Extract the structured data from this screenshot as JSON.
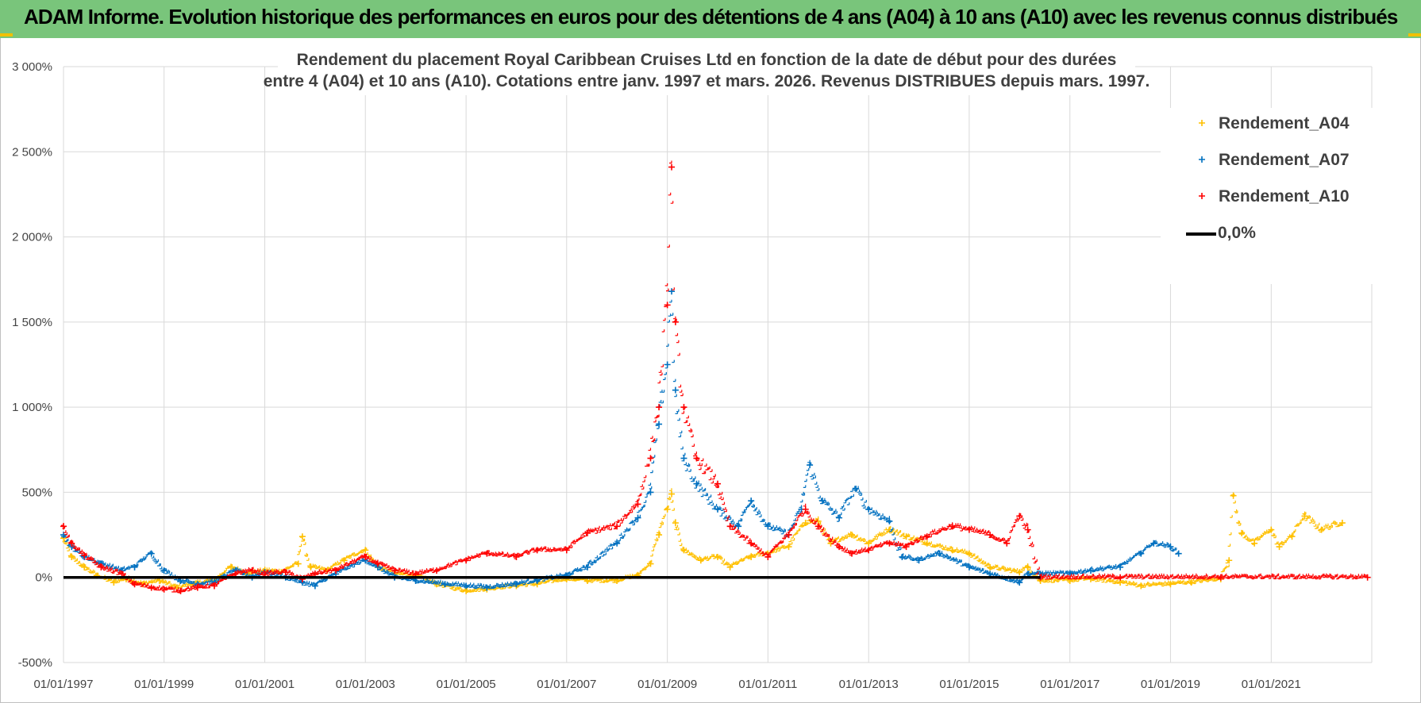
{
  "banner": {
    "title": "ADAM Informe. Evolution historique des performances en euros pour des détentions de 4 ans (A04) à 10 ans (A10) avec les revenus connus distribués"
  },
  "colors": {
    "banner_bg": "#79c57b",
    "A04": "#ffc000",
    "A07": "#0070c0",
    "A10": "#ff0000",
    "zero_line": "#000000",
    "grid": "#d9d9d9"
  },
  "chart_data": {
    "type": "scatter",
    "title_lines": [
      "Rendement du placement Royal Caribbean Cruises Ltd en fonction de la date de début pour des durées",
      "entre 4 (A04) et 10 ans (A10).  Cotations entre janv. 1997 et mars. 2026. Revenus DISTRIBUES depuis mars. 1997."
    ],
    "y_unit": "%",
    "ylim": [
      -500,
      3000
    ],
    "yticks": [
      {
        "value": 3000,
        "label": "3 000%"
      },
      {
        "value": 2500,
        "label": "2 500%"
      },
      {
        "value": 2000,
        "label": "2 000%"
      },
      {
        "value": 1500,
        "label": "1 500%"
      },
      {
        "value": 1000,
        "label": "1 000%"
      },
      {
        "value": 500,
        "label": "500%"
      },
      {
        "value": 0,
        "label": "0%"
      },
      {
        "value": -500,
        "label": "-500%"
      }
    ],
    "xlim": [
      "1997-01-01",
      "2023-01-01"
    ],
    "xticks": [
      {
        "value": "1997-01-01",
        "label": "01/01/1997"
      },
      {
        "value": "1999-01-01",
        "label": "01/01/1999"
      },
      {
        "value": "2001-01-01",
        "label": "01/01/2001"
      },
      {
        "value": "2003-01-01",
        "label": "01/01/2003"
      },
      {
        "value": "2005-01-01",
        "label": "01/01/2005"
      },
      {
        "value": "2007-01-01",
        "label": "01/01/2007"
      },
      {
        "value": "2009-01-01",
        "label": "01/01/2009"
      },
      {
        "value": "2011-01-01",
        "label": "01/01/2011"
      },
      {
        "value": "2013-01-01",
        "label": "01/01/2013"
      },
      {
        "value": "2015-01-01",
        "label": "01/01/2015"
      },
      {
        "value": "2017-01-01",
        "label": "01/01/2017"
      },
      {
        "value": "2019-01-01",
        "label": "01/01/2019"
      },
      {
        "value": "2021-01-01",
        "label": "01/01/2021"
      }
    ],
    "grid": "vertical and horizontal",
    "legend_position": "top-right",
    "series": [
      {
        "name": "Rendement_A04",
        "marker": "plus",
        "color": "#ffc000",
        "points": [
          [
            "1997-01-01",
            230
          ],
          [
            "1997-03-01",
            120
          ],
          [
            "1997-06-01",
            60
          ],
          [
            "1997-09-01",
            10
          ],
          [
            "1998-01-01",
            -30
          ],
          [
            "1998-04-01",
            -10
          ],
          [
            "1998-08-01",
            -40
          ],
          [
            "1998-12-01",
            -20
          ],
          [
            "1999-04-01",
            -60
          ],
          [
            "1999-08-01",
            -40
          ],
          [
            "2000-01-01",
            -20
          ],
          [
            "2000-05-01",
            60
          ],
          [
            "2000-09-01",
            20
          ],
          [
            "2001-01-01",
            40
          ],
          [
            "2001-05-01",
            30
          ],
          [
            "2001-09-01",
            80
          ],
          [
            "2001-10-01",
            240
          ],
          [
            "2001-12-01",
            60
          ],
          [
            "2002-04-01",
            40
          ],
          [
            "2002-08-01",
            100
          ],
          [
            "2003-01-01",
            160
          ],
          [
            "2003-04-01",
            60
          ],
          [
            "2003-08-01",
            20
          ],
          [
            "2004-01-01",
            10
          ],
          [
            "2004-06-01",
            -40
          ],
          [
            "2005-01-01",
            -80
          ],
          [
            "2005-06-01",
            -70
          ],
          [
            "2006-01-01",
            -50
          ],
          [
            "2006-06-01",
            -40
          ],
          [
            "2007-01-01",
            -10
          ],
          [
            "2007-06-01",
            -20
          ],
          [
            "2008-01-01",
            -20
          ],
          [
            "2008-06-01",
            10
          ],
          [
            "2008-09-01",
            80
          ],
          [
            "2008-11-01",
            250
          ],
          [
            "2009-01-01",
            400
          ],
          [
            "2009-02-01",
            490
          ],
          [
            "2009-03-01",
            320
          ],
          [
            "2009-05-01",
            160
          ],
          [
            "2009-09-01",
            100
          ],
          [
            "2010-01-01",
            120
          ],
          [
            "2010-04-01",
            60
          ],
          [
            "2010-09-01",
            120
          ],
          [
            "2011-01-01",
            140
          ],
          [
            "2011-06-01",
            180
          ],
          [
            "2011-10-01",
            320
          ],
          [
            "2012-01-01",
            330
          ],
          [
            "2012-04-01",
            200
          ],
          [
            "2012-09-01",
            250
          ],
          [
            "2013-01-01",
            200
          ],
          [
            "2013-06-01",
            280
          ],
          [
            "2013-10-01",
            240
          ],
          [
            "2014-03-01",
            200
          ],
          [
            "2014-09-01",
            160
          ],
          [
            "2015-01-01",
            140
          ],
          [
            "2015-06-01",
            60
          ],
          [
            "2016-01-01",
            30
          ],
          [
            "2016-03-01",
            60
          ],
          [
            "2016-06-01",
            -20
          ],
          [
            "2017-01-01",
            -20
          ],
          [
            "2017-06-01",
            -10
          ],
          [
            "2018-01-01",
            -30
          ],
          [
            "2018-06-01",
            -50
          ],
          [
            "2019-01-01",
            -40
          ],
          [
            "2019-06-01",
            -30
          ],
          [
            "2020-01-01",
            -10
          ],
          [
            "2020-03-01",
            100
          ],
          [
            "2020-04-01",
            480
          ],
          [
            "2020-06-01",
            260
          ],
          [
            "2020-09-01",
            200
          ],
          [
            "2021-01-01",
            280
          ],
          [
            "2021-03-01",
            180
          ],
          [
            "2021-06-01",
            240
          ],
          [
            "2021-09-01",
            360
          ],
          [
            "2022-01-01",
            280
          ],
          [
            "2022-06-01",
            320
          ]
        ]
      },
      {
        "name": "Rendement_A07",
        "marker": "plus",
        "color": "#0070c0",
        "points": [
          [
            "1997-01-01",
            250
          ],
          [
            "1997-03-01",
            180
          ],
          [
            "1997-06-01",
            120
          ],
          [
            "1997-10-01",
            80
          ],
          [
            "1998-03-01",
            40
          ],
          [
            "1998-06-01",
            60
          ],
          [
            "1998-10-01",
            140
          ],
          [
            "1999-01-01",
            40
          ],
          [
            "1999-05-01",
            -20
          ],
          [
            "1999-09-01",
            -40
          ],
          [
            "2000-01-01",
            -30
          ],
          [
            "2000-06-01",
            40
          ],
          [
            "2000-10-01",
            0
          ],
          [
            "2001-01-01",
            30
          ],
          [
            "2001-06-01",
            0
          ],
          [
            "2001-10-01",
            -30
          ],
          [
            "2002-01-01",
            -50
          ],
          [
            "2002-06-01",
            20
          ],
          [
            "2003-01-01",
            100
          ],
          [
            "2003-04-01",
            60
          ],
          [
            "2003-08-01",
            0
          ],
          [
            "2004-01-01",
            -20
          ],
          [
            "2004-08-01",
            -40
          ],
          [
            "2005-01-01",
            -50
          ],
          [
            "2005-06-01",
            -60
          ],
          [
            "2006-01-01",
            -40
          ],
          [
            "2006-06-01",
            -20
          ],
          [
            "2007-01-01",
            10
          ],
          [
            "2007-06-01",
            60
          ],
          [
            "2008-01-01",
            200
          ],
          [
            "2008-06-01",
            350
          ],
          [
            "2008-09-01",
            500
          ],
          [
            "2008-11-01",
            900
          ],
          [
            "2009-01-01",
            1250
          ],
          [
            "2009-02-01",
            1680
          ],
          [
            "2009-03-01",
            1100
          ],
          [
            "2009-05-01",
            700
          ],
          [
            "2009-08-01",
            550
          ],
          [
            "2010-01-01",
            400
          ],
          [
            "2010-06-01",
            300
          ],
          [
            "2010-09-01",
            450
          ],
          [
            "2011-01-01",
            300
          ],
          [
            "2011-06-01",
            250
          ],
          [
            "2011-09-01",
            400
          ],
          [
            "2011-11-01",
            660
          ],
          [
            "2012-02-01",
            450
          ],
          [
            "2012-06-01",
            350
          ],
          [
            "2012-10-01",
            520
          ],
          [
            "2013-01-01",
            400
          ],
          [
            "2013-06-01",
            330
          ],
          [
            "2013-09-01",
            120
          ],
          [
            "2014-01-01",
            100
          ],
          [
            "2014-06-01",
            140
          ],
          [
            "2015-01-01",
            60
          ],
          [
            "2015-06-01",
            20
          ],
          [
            "2016-01-01",
            -30
          ],
          [
            "2016-03-01",
            20
          ],
          [
            "2016-06-01",
            20
          ],
          [
            "2017-01-01",
            20
          ],
          [
            "2017-06-01",
            40
          ],
          [
            "2018-01-01",
            60
          ],
          [
            "2018-06-01",
            140
          ],
          [
            "2018-09-01",
            200
          ],
          [
            "2019-01-01",
            180
          ],
          [
            "2019-03-01",
            140
          ]
        ]
      },
      {
        "name": "Rendement_A10",
        "marker": "plus",
        "color": "#ff0000",
        "points": [
          [
            "1997-01-01",
            300
          ],
          [
            "1997-03-01",
            200
          ],
          [
            "1997-06-01",
            130
          ],
          [
            "1997-10-01",
            60
          ],
          [
            "1998-03-01",
            20
          ],
          [
            "1998-06-01",
            -40
          ],
          [
            "1998-10-01",
            -60
          ],
          [
            "1999-01-01",
            -70
          ],
          [
            "1999-05-01",
            -80
          ],
          [
            "1999-09-01",
            -60
          ],
          [
            "2000-01-01",
            -50
          ],
          [
            "2000-06-01",
            20
          ],
          [
            "2000-10-01",
            40
          ],
          [
            "2001-01-01",
            20
          ],
          [
            "2001-06-01",
            30
          ],
          [
            "2001-10-01",
            -10
          ],
          [
            "2002-01-01",
            20
          ],
          [
            "2002-06-01",
            40
          ],
          [
            "2003-01-01",
            120
          ],
          [
            "2003-04-01",
            80
          ],
          [
            "2003-08-01",
            40
          ],
          [
            "2004-01-01",
            20
          ],
          [
            "2004-06-01",
            40
          ],
          [
            "2005-01-01",
            100
          ],
          [
            "2005-06-01",
            140
          ],
          [
            "2006-01-01",
            120
          ],
          [
            "2006-06-01",
            160
          ],
          [
            "2007-01-01",
            160
          ],
          [
            "2007-06-01",
            260
          ],
          [
            "2008-01-01",
            300
          ],
          [
            "2008-06-01",
            430
          ],
          [
            "2008-09-01",
            700
          ],
          [
            "2008-11-01",
            1000
          ],
          [
            "2009-01-01",
            1600
          ],
          [
            "2009-02-01",
            2410
          ],
          [
            "2009-03-01",
            1500
          ],
          [
            "2009-05-01",
            1000
          ],
          [
            "2009-08-01",
            700
          ],
          [
            "2010-01-01",
            550
          ],
          [
            "2010-04-01",
            300
          ],
          [
            "2010-09-01",
            200
          ],
          [
            "2011-01-01",
            120
          ],
          [
            "2011-06-01",
            250
          ],
          [
            "2011-10-01",
            400
          ],
          [
            "2012-01-01",
            300
          ],
          [
            "2012-06-01",
            180
          ],
          [
            "2012-09-01",
            140
          ],
          [
            "2013-01-01",
            160
          ],
          [
            "2013-06-01",
            200
          ],
          [
            "2013-10-01",
            180
          ],
          [
            "2014-03-01",
            240
          ],
          [
            "2014-09-01",
            300
          ],
          [
            "2015-01-01",
            280
          ],
          [
            "2015-06-01",
            250
          ],
          [
            "2015-10-01",
            200
          ],
          [
            "2016-01-01",
            360
          ],
          [
            "2016-03-01",
            280
          ],
          [
            "2016-06-01",
            0
          ],
          [
            "2018-01-01",
            0
          ],
          [
            "2020-01-01",
            0
          ],
          [
            "2022-12-01",
            0
          ]
        ]
      },
      {
        "name": "0,0%",
        "marker": "line",
        "color": "#000000",
        "points": [
          [
            "1997-01-01",
            0
          ],
          [
            "2016-06-01",
            0
          ]
        ]
      }
    ]
  }
}
